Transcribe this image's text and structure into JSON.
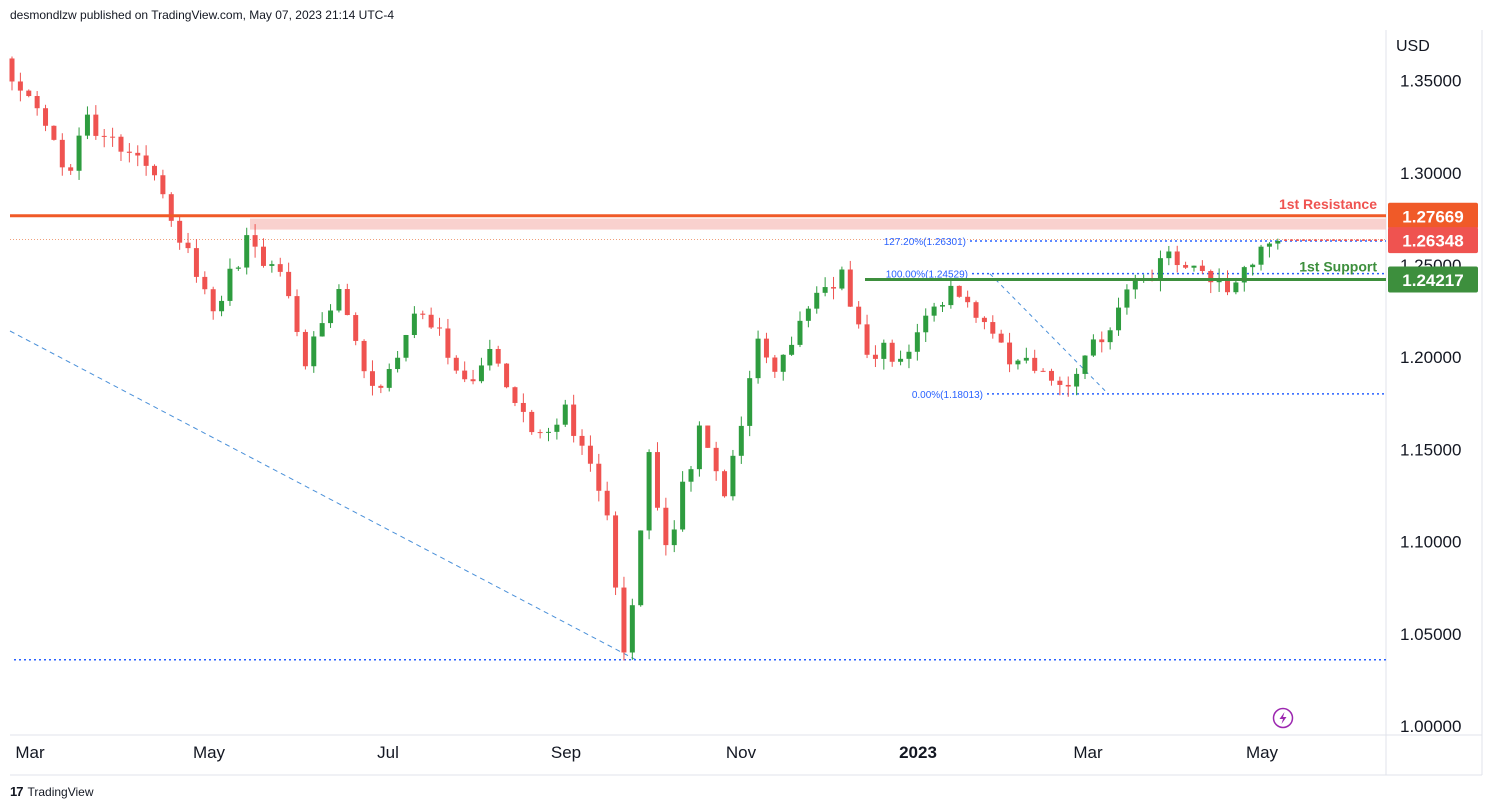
{
  "header": {
    "published_by": "desmondlzw published on TradingView.com, May 07, 2023 21:14 UTC-4"
  },
  "footer": {
    "brand": "TradingView",
    "logo_icon": "tradingview-logo-icon"
  },
  "axis": {
    "currency": "USD"
  },
  "colors": {
    "bull": "#26a69a",
    "bull_candle": "#2e9c3f",
    "bear": "#ef5350",
    "resistance": "#f05a28",
    "support": "#3d8f3d",
    "fib": "#2962ff",
    "zone": "#f8c9c5",
    "lightning": "#9c27b0"
  },
  "chart_data": {
    "type": "candlestick",
    "ylim": [
      1.0,
      1.38
    ],
    "y_ticks": [
      "1.35000",
      "1.30000",
      "1.25000",
      "1.20000",
      "1.15000",
      "1.10000",
      "1.05000",
      "1.00000"
    ],
    "x_ticks": [
      {
        "label": "Mar",
        "bold": false
      },
      {
        "label": "May",
        "bold": false
      },
      {
        "label": "Jul",
        "bold": false
      },
      {
        "label": "Sep",
        "bold": false
      },
      {
        "label": "Nov",
        "bold": false
      },
      {
        "label": "2023",
        "bold": true
      },
      {
        "label": "Mar",
        "bold": false
      },
      {
        "label": "May",
        "bold": false
      }
    ],
    "anchors": [
      [
        0,
        1.362
      ],
      [
        25,
        1.335
      ],
      [
        45,
        1.298
      ],
      [
        58,
        1.328
      ],
      [
        110,
        1.3
      ],
      [
        130,
        1.258
      ],
      [
        150,
        1.225
      ],
      [
        175,
        1.264
      ],
      [
        200,
        1.242
      ],
      [
        215,
        1.198
      ],
      [
        240,
        1.232
      ],
      [
        265,
        1.178
      ],
      [
        300,
        1.228
      ],
      [
        330,
        1.188
      ],
      [
        350,
        1.2
      ],
      [
        385,
        1.155
      ],
      [
        400,
        1.172
      ],
      [
        430,
        1.125
      ],
      [
        445,
        1.038
      ],
      [
        462,
        1.145
      ],
      [
        475,
        1.1
      ],
      [
        500,
        1.162
      ],
      [
        515,
        1.118
      ],
      [
        540,
        1.205
      ],
      [
        555,
        1.19
      ],
      [
        580,
        1.235
      ],
      [
        600,
        1.245
      ],
      [
        615,
        1.208
      ],
      [
        640,
        1.198
      ],
      [
        660,
        1.225
      ],
      [
        680,
        1.24
      ],
      [
        710,
        1.205
      ],
      [
        760,
        1.185
      ],
      [
        790,
        1.218
      ],
      [
        815,
        1.242
      ],
      [
        835,
        1.252
      ],
      [
        880,
        1.24
      ],
      [
        905,
        1.262
      ]
    ],
    "levels": {
      "resistance": {
        "label": "1st Resistance",
        "value": "1.27669",
        "price": 1.27669
      },
      "current": {
        "value": "1.26348",
        "price": 1.26348
      },
      "support": {
        "label": "1st Support",
        "value": "1.24217",
        "price": 1.24217
      },
      "fib_127": {
        "label": "127.20%(1.26301)",
        "price": 1.26301
      },
      "fib_100": {
        "label": "100.00%(1.24529)",
        "price": 1.24529
      },
      "fib_0": {
        "label": "0.00%(1.18013)",
        "price": 1.18013
      },
      "low": {
        "price": 1.0359
      }
    }
  }
}
